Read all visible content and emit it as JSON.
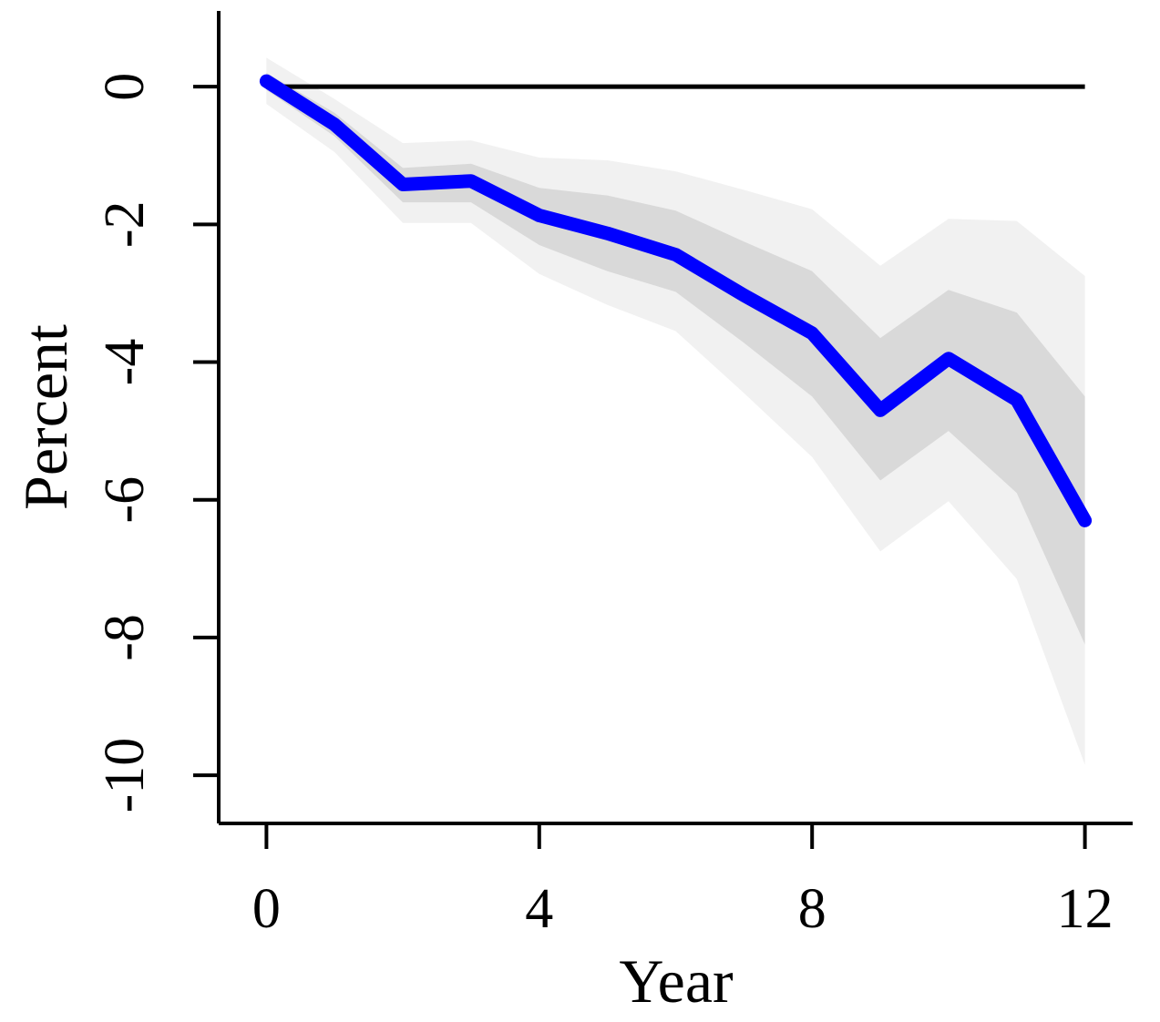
{
  "chart_data": {
    "type": "line",
    "title": "",
    "xlabel": "Year",
    "ylabel": "Percent",
    "xlim": [
      -0.7,
      12.7
    ],
    "ylim": [
      -10.7,
      1.1
    ],
    "x_ticks": [
      0,
      4,
      8,
      12
    ],
    "y_ticks": [
      0,
      -2,
      -4,
      -6,
      -8,
      -10
    ],
    "x_tick_labels": [
      "0",
      "4",
      "8",
      "12"
    ],
    "y_tick_labels": [
      "0",
      "-2",
      "-4",
      "-6",
      "-8",
      "-10"
    ],
    "grid": false,
    "reference_line": {
      "y": 0,
      "color": "#000000"
    },
    "series": [
      {
        "x": [
          0,
          1,
          2,
          3,
          4,
          5,
          6,
          7,
          8,
          9,
          10,
          11,
          12
        ],
        "values": [
          0.08,
          -0.55,
          -1.42,
          -1.37,
          -1.87,
          -2.13,
          -2.44,
          -3.03,
          -3.58,
          -4.7,
          -3.95,
          -4.55,
          -6.3
        ],
        "color": "#0000ff"
      }
    ],
    "bands": [
      {
        "level": "outer",
        "color": "#f1f1f1",
        "upper": [
          0.42,
          -0.18,
          -0.82,
          -0.78,
          -1.03,
          -1.07,
          -1.23,
          -1.5,
          -1.78,
          -2.6,
          -1.92,
          -1.95,
          -2.75
        ],
        "lower": [
          -0.25,
          -0.95,
          -1.98,
          -1.98,
          -2.72,
          -3.17,
          -3.55,
          -4.45,
          -5.38,
          -6.75,
          -6.02,
          -7.15,
          -9.85
        ]
      },
      {
        "level": "inner",
        "color": "#d9d9d9",
        "upper": [
          0.2,
          -0.38,
          -1.18,
          -1.12,
          -1.47,
          -1.58,
          -1.8,
          -2.25,
          -2.68,
          -3.65,
          -2.95,
          -3.28,
          -4.5
        ],
        "lower": [
          -0.05,
          -0.72,
          -1.68,
          -1.68,
          -2.3,
          -2.68,
          -2.98,
          -3.72,
          -4.5,
          -5.72,
          -5.0,
          -5.9,
          -8.1
        ]
      }
    ]
  }
}
